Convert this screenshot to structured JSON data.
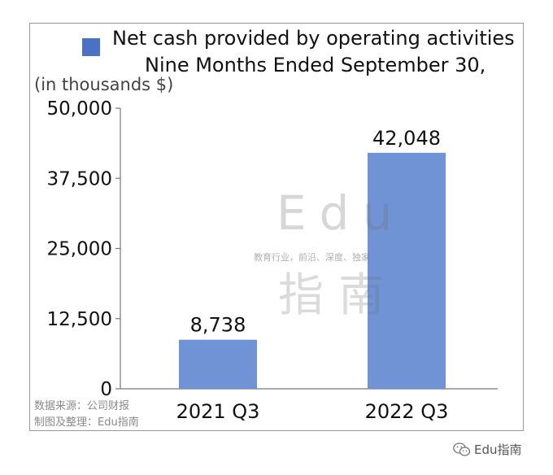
{
  "chart_data": {
    "type": "bar",
    "title": "Net cash provided by operating activities\nNine Months Ended September 30,",
    "legend": [
      "Net cash provided by operating activities"
    ],
    "ylabel": "(in thousands $)",
    "categories": [
      "2021 Q3",
      "2022 Q3"
    ],
    "series": [
      {
        "name": "Net cash provided by operating activities",
        "values": [
          8738,
          42048
        ]
      }
    ],
    "data_labels": [
      "8,738",
      "42,048"
    ],
    "ylim": [
      0,
      50000
    ],
    "yticks": [
      0,
      12500,
      25000,
      37500,
      50000
    ],
    "ytick_labels": [
      "0",
      "12,500",
      "25,000",
      "37,500",
      "50,000"
    ],
    "grid": false,
    "legend_position": "top-left",
    "bar_color": "#6f93d4",
    "legend_color": "#4a72c4"
  },
  "legend": {
    "line1": "Net cash provided by operating activities",
    "line2": "Nine Months Ended September 30,"
  },
  "unit_label": "(in thousands $)",
  "watermark": {
    "edu": "Edu",
    "tagline": "教育行业，前沿、深度、独家",
    "zhinan": "指南"
  },
  "source_note": {
    "line1": "数据来源：公司财报",
    "line2": "制图及整理：Edu指南"
  },
  "brand": {
    "icon": "wechat-icon",
    "text": "Edu指南"
  }
}
